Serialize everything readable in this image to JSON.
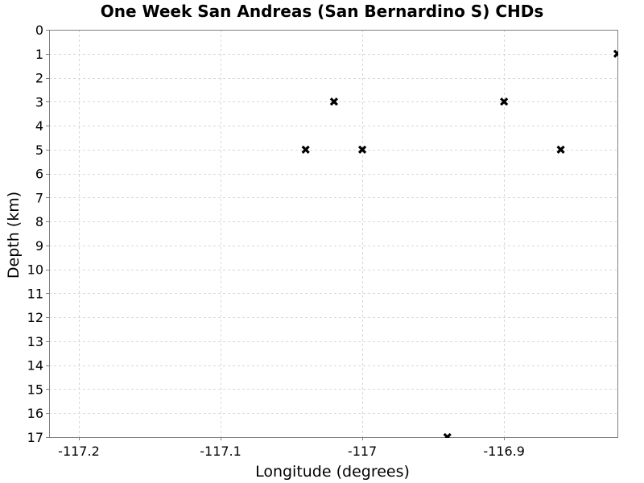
{
  "chart_data": {
    "type": "scatter",
    "title": "One Week San Andreas (San Bernardino S) CHDs",
    "xlabel": "Longitude (degrees)",
    "ylabel": "Depth (km)",
    "xlim": [
      -117.221,
      -116.82
    ],
    "ylim": [
      0,
      17
    ],
    "y_inverted": true,
    "x_ticks": [
      -117.2,
      -117.1,
      -117,
      -116.9
    ],
    "x_tick_labels": [
      "-117.2",
      "-117.1",
      "-117",
      "-116.9"
    ],
    "y_ticks": [
      0,
      1,
      2,
      3,
      4,
      5,
      6,
      7,
      8,
      9,
      10,
      11,
      12,
      13,
      14,
      15,
      16,
      17
    ],
    "y_tick_labels": [
      "0",
      "1",
      "2",
      "3",
      "4",
      "5",
      "6",
      "7",
      "8",
      "9",
      "10",
      "11",
      "12",
      "13",
      "14",
      "15",
      "16",
      "17"
    ],
    "grid": true,
    "marker": "x",
    "marker_color": "#000000",
    "grid_color": "#d8d8d8",
    "series": [
      {
        "points": [
          {
            "x": -117.04,
            "y": 5
          },
          {
            "x": -117.02,
            "y": 3
          },
          {
            "x": -117.0,
            "y": 5
          },
          {
            "x": -116.94,
            "y": 17
          },
          {
            "x": -116.9,
            "y": 3
          },
          {
            "x": -116.86,
            "y": 5
          },
          {
            "x": -116.82,
            "y": 1
          }
        ]
      }
    ]
  }
}
